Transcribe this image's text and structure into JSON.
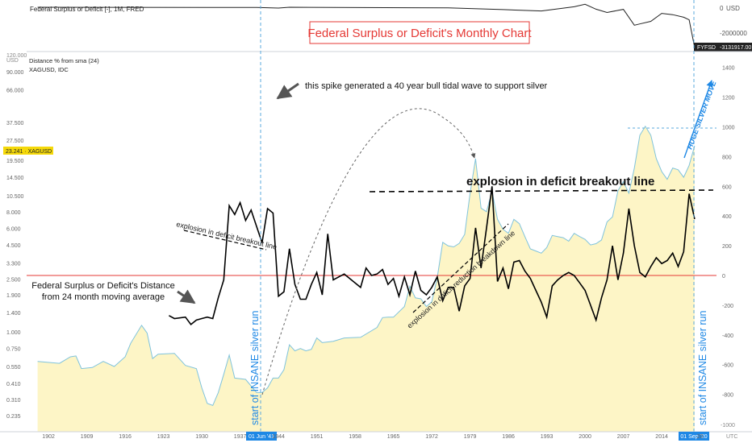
{
  "top_panel": {
    "title": "Federal Surplus or Deficit [-], 1M, FRED",
    "currency": "USD",
    "tick_zero": "0",
    "tick_neg": "-2000000",
    "value_ticker": "FYFSD",
    "value": "-3131917.00"
  },
  "main_panel": {
    "headline": "Federal Surplus or Deficit's Monthly Chart",
    "indicator": "Distance % from sma (24)",
    "symbol": "XAGUSD, IDC",
    "price_label": "23.241 · XAGUSD",
    "currency": "USD",
    "left_top_partial": "120.000",
    "right_bottom_partial": "-1000"
  },
  "annotations": {
    "spike": "this spike generated a 40 year bull tidal wave to support silver",
    "breakout": "explosion in deficit breakout line",
    "breakout_small": "explosion in deficit breakout line",
    "reduction": "explosion in deficit reduction breakdown line",
    "distance_line1": "Federal Surplus or Deficit's Distance",
    "distance_line2": "from 24 month moving average",
    "huge": "HUGE SILVER MOVE",
    "insane_left": "start of INSANE silver run",
    "insane_right": "start of INSANE silver run"
  },
  "time_axis": {
    "labels": [
      "1902",
      "1909",
      "1916",
      "1923",
      "1930",
      "1937",
      "1944",
      "1951",
      "1958",
      "1965",
      "1972",
      "1979",
      "1986",
      "1993",
      "2000",
      "2007",
      "2014",
      "20"
    ],
    "highlight_left": "01 Jun '41",
    "highlight_right": "01 Sep '20",
    "tz": "UTC"
  },
  "colors": {
    "deficit_line": "#000000",
    "silver_line": "#7fc3dc",
    "silver_fill": "#fdf5c6",
    "zero_line": "#e53935",
    "marker_line": "#5aa9dd",
    "highlight_bg": "#1e88e5",
    "headline_red": "#e53935",
    "price_tag": "#f5d90a"
  },
  "chart_data": {
    "type": "line",
    "y_left": {
      "scale": "log",
      "ticks": [
        90,
        66,
        37.5,
        27.5,
        19.5,
        14.5,
        10.5,
        8,
        6,
        4.5,
        3.3,
        2.5,
        1.9,
        1.4,
        1,
        0.75,
        0.55,
        0.41,
        0.31,
        0.235
      ],
      "tick_labels": [
        "90.000",
        "66.000",
        "37.500",
        "27.500",
        "19.500",
        "14.500",
        "10.500",
        "8.000",
        "6.000",
        "4.500",
        "3.300",
        "2.500",
        "1.900",
        "1.400",
        "1.000",
        "0.750",
        "0.550",
        "0.410",
        "0.310",
        "0.235"
      ]
    },
    "y_right": {
      "range": [
        -1000,
        1400
      ],
      "ticks": [
        1400,
        1200,
        1000,
        800,
        600,
        400,
        200,
        0,
        -200,
        -400,
        -600,
        -800
      ]
    },
    "x_range": [
      1898,
      2024
    ],
    "series": [
      {
        "name": "XAGUSD",
        "axis": "left",
        "points": [
          [
            1900,
            0.6
          ],
          [
            1904,
            0.58
          ],
          [
            1906,
            0.65
          ],
          [
            1907,
            0.66
          ],
          [
            1908,
            0.53
          ],
          [
            1910,
            0.54
          ],
          [
            1912,
            0.6
          ],
          [
            1914,
            0.55
          ],
          [
            1916,
            0.65
          ],
          [
            1917,
            0.82
          ],
          [
            1919,
            1.12
          ],
          [
            1920,
            0.98
          ],
          [
            1921,
            0.63
          ],
          [
            1922,
            0.68
          ],
          [
            1925,
            0.69
          ],
          [
            1927,
            0.56
          ],
          [
            1929,
            0.53
          ],
          [
            1930,
            0.38
          ],
          [
            1931,
            0.29
          ],
          [
            1932,
            0.28
          ],
          [
            1933,
            0.35
          ],
          [
            1934,
            0.48
          ],
          [
            1935,
            0.67
          ],
          [
            1936,
            0.45
          ],
          [
            1938,
            0.44
          ],
          [
            1940,
            0.35
          ],
          [
            1941,
            0.35
          ],
          [
            1942,
            0.38
          ],
          [
            1943,
            0.45
          ],
          [
            1944,
            0.45
          ],
          [
            1945,
            0.52
          ],
          [
            1946,
            0.8
          ],
          [
            1947,
            0.72
          ],
          [
            1948,
            0.75
          ],
          [
            1949,
            0.72
          ],
          [
            1950,
            0.74
          ],
          [
            1951,
            0.9
          ],
          [
            1952,
            0.83
          ],
          [
            1954,
            0.85
          ],
          [
            1956,
            0.9
          ],
          [
            1959,
            0.91
          ],
          [
            1962,
            1.08
          ],
          [
            1963,
            1.28
          ],
          [
            1964,
            1.29
          ],
          [
            1965,
            1.29
          ],
          [
            1967,
            1.55
          ],
          [
            1968,
            2.2
          ],
          [
            1969,
            1.8
          ],
          [
            1970,
            1.77
          ],
          [
            1971,
            1.55
          ],
          [
            1972,
            1.68
          ],
          [
            1973,
            2.56
          ],
          [
            1974,
            4.7
          ],
          [
            1975,
            4.42
          ],
          [
            1976,
            4.35
          ],
          [
            1977,
            4.62
          ],
          [
            1978,
            5.4
          ],
          [
            1979,
            11
          ],
          [
            1980,
            20
          ],
          [
            1981,
            8.5
          ],
          [
            1982,
            8
          ],
          [
            1983,
            11.4
          ],
          [
            1984,
            7
          ],
          [
            1985,
            5.9
          ],
          [
            1986,
            5.5
          ],
          [
            1987,
            7
          ],
          [
            1988,
            6.5
          ],
          [
            1989,
            5.2
          ],
          [
            1990,
            4.2
          ],
          [
            1991,
            4.05
          ],
          [
            1992,
            3.9
          ],
          [
            1993,
            4.3
          ],
          [
            1994,
            5.3
          ],
          [
            1995,
            5.2
          ],
          [
            1996,
            5.1
          ],
          [
            1997,
            4.8
          ],
          [
            1998,
            5.5
          ],
          [
            1999,
            5.2
          ],
          [
            2000,
            4.95
          ],
          [
            2001,
            4.5
          ],
          [
            2002,
            4.6
          ],
          [
            2003,
            4.9
          ],
          [
            2004,
            6.7
          ],
          [
            2005,
            7.3
          ],
          [
            2006,
            11.5
          ],
          [
            2007,
            13.4
          ],
          [
            2008,
            11
          ],
          [
            2009,
            17
          ],
          [
            2010,
            30
          ],
          [
            2011,
            35
          ],
          [
            2012,
            30
          ],
          [
            2013,
            20
          ],
          [
            2014,
            16
          ],
          [
            2015,
            14
          ],
          [
            2016,
            17
          ],
          [
            2017,
            16.5
          ],
          [
            2018,
            14.5
          ],
          [
            2019,
            17.8
          ],
          [
            2020,
            25
          ]
        ]
      },
      {
        "name": "Federal Surplus or Deficit's Distance",
        "axis": "right",
        "points": [
          [
            1924,
            -270
          ],
          [
            1925,
            -290
          ],
          [
            1927,
            -280
          ],
          [
            1928,
            -330
          ],
          [
            1929,
            -300
          ],
          [
            1930,
            -290
          ],
          [
            1931,
            -280
          ],
          [
            1932,
            -290
          ],
          [
            1933,
            -150
          ],
          [
            1934,
            -30
          ],
          [
            1935,
            470
          ],
          [
            1936,
            410
          ],
          [
            1937,
            490
          ],
          [
            1938,
            370
          ],
          [
            1939,
            440
          ],
          [
            1940,
            330
          ],
          [
            1941,
            220
          ],
          [
            1942,
            450
          ],
          [
            1943,
            420
          ],
          [
            1944,
            -140
          ],
          [
            1945,
            -110
          ],
          [
            1946,
            180
          ],
          [
            1947,
            -60
          ],
          [
            1948,
            -160
          ],
          [
            1949,
            -160
          ],
          [
            1950,
            -60
          ],
          [
            1951,
            20
          ],
          [
            1952,
            -130
          ],
          [
            1953,
            280
          ],
          [
            1954,
            -30
          ],
          [
            1956,
            10
          ],
          [
            1958,
            -50
          ],
          [
            1959,
            -80
          ],
          [
            1960,
            50
          ],
          [
            1961,
            0
          ],
          [
            1962,
            10
          ],
          [
            1963,
            40
          ],
          [
            1964,
            -60
          ],
          [
            1965,
            -20
          ],
          [
            1966,
            -140
          ],
          [
            1967,
            -10
          ],
          [
            1968,
            -130
          ],
          [
            1969,
            30
          ],
          [
            1970,
            -100
          ],
          [
            1971,
            -130
          ],
          [
            1972,
            -80
          ],
          [
            1973,
            -10
          ],
          [
            1974,
            -170
          ],
          [
            1975,
            -80
          ],
          [
            1976,
            -80
          ],
          [
            1977,
            -240
          ],
          [
            1978,
            -70
          ],
          [
            1979,
            -20
          ],
          [
            1980,
            320
          ],
          [
            1981,
            50
          ],
          [
            1982,
            320
          ],
          [
            1983,
            600
          ],
          [
            1984,
            -40
          ],
          [
            1985,
            50
          ],
          [
            1986,
            -90
          ],
          [
            1987,
            90
          ],
          [
            1988,
            100
          ],
          [
            1989,
            30
          ],
          [
            1990,
            -20
          ],
          [
            1991,
            -100
          ],
          [
            1992,
            -180
          ],
          [
            1993,
            -280
          ],
          [
            1994,
            -70
          ],
          [
            1995,
            -30
          ],
          [
            1996,
            0
          ],
          [
            1997,
            20
          ],
          [
            1998,
            0
          ],
          [
            1999,
            -50
          ],
          [
            2000,
            -100
          ],
          [
            2001,
            -200
          ],
          [
            2002,
            -300
          ],
          [
            2003,
            -150
          ],
          [
            2004,
            -30
          ],
          [
            2005,
            200
          ],
          [
            2006,
            -30
          ],
          [
            2007,
            150
          ],
          [
            2008,
            450
          ],
          [
            2009,
            200
          ],
          [
            2010,
            20
          ],
          [
            2011,
            -10
          ],
          [
            2012,
            60
          ],
          [
            2013,
            120
          ],
          [
            2014,
            80
          ],
          [
            2015,
            100
          ],
          [
            2016,
            150
          ],
          [
            2017,
            60
          ],
          [
            2018,
            160
          ],
          [
            2019,
            550
          ],
          [
            2020,
            380
          ]
        ]
      }
    ],
    "top_series": {
      "name": "Federal Surplus or Deficit [-]",
      "range": [
        -3200000,
        300000
      ],
      "points": [
        [
          1900,
          0
        ],
        [
          1940,
          -20000
        ],
        [
          1944,
          -60000
        ],
        [
          1946,
          0
        ],
        [
          1975,
          -50000
        ],
        [
          1985,
          -180000
        ],
        [
          1992,
          -290000
        ],
        [
          1998,
          40000
        ],
        [
          2000,
          230000
        ],
        [
          2002,
          -150000
        ],
        [
          2004,
          -410000
        ],
        [
          2007,
          -160000
        ],
        [
          2009,
          -1400000
        ],
        [
          2010,
          -1300000
        ],
        [
          2012,
          -1100000
        ],
        [
          2014,
          -480000
        ],
        [
          2016,
          -580000
        ],
        [
          2018,
          -780000
        ],
        [
          2019,
          -980000
        ],
        [
          2020,
          -3131917
        ]
      ]
    }
  }
}
